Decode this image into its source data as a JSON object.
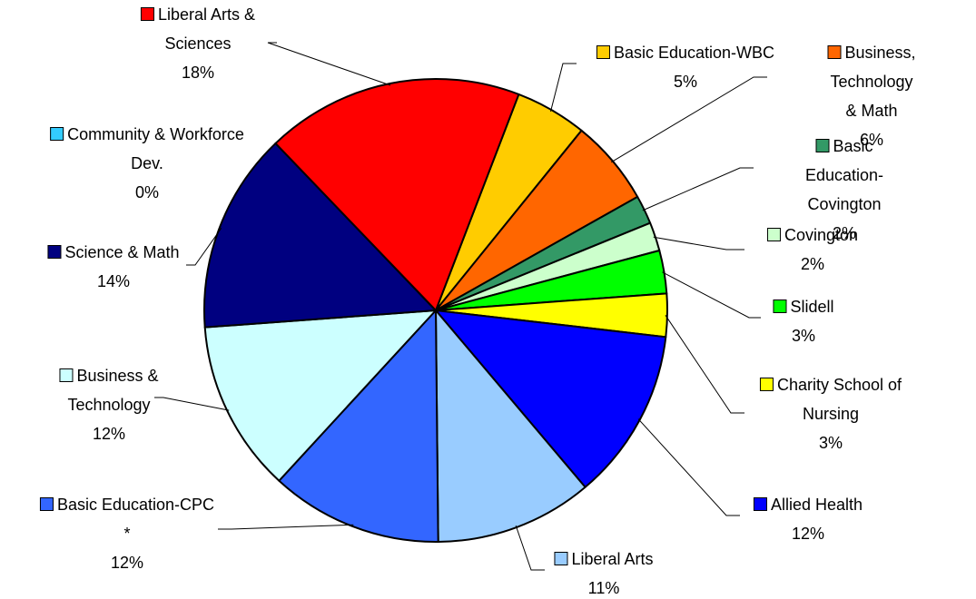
{
  "chart_data": {
    "type": "pie",
    "categories": [
      "Basic Education-WBC",
      "Business, Technology\n& Math",
      "Basic Education-\nCovington",
      "Covington",
      "Slidell",
      "Charity School of\nNursing",
      "Allied Health",
      "Liberal Arts",
      "Basic Education-CPC\n*",
      "Business &\nTechnology",
      "Science & Math",
      "Community & Workforce\nDev.",
      "Liberal Arts &\nSciences"
    ],
    "values": [
      5,
      6,
      2,
      2,
      3,
      3,
      12,
      11,
      12,
      12,
      14,
      0,
      18
    ],
    "value_labels": [
      "5%",
      "6%",
      "2%",
      "2%",
      "3%",
      "3%",
      "12%",
      "11%",
      "12%",
      "12%",
      "14%",
      "0%",
      "18%"
    ],
    "colors": [
      "#ffcc00",
      "#ff6600",
      "#339966",
      "#ccffcc",
      "#00ff00",
      "#ffff00",
      "#0000ff",
      "#99ccff",
      "#3366ff",
      "#ccffff",
      "#000080",
      "#33ccff",
      "#ff0000"
    ]
  }
}
